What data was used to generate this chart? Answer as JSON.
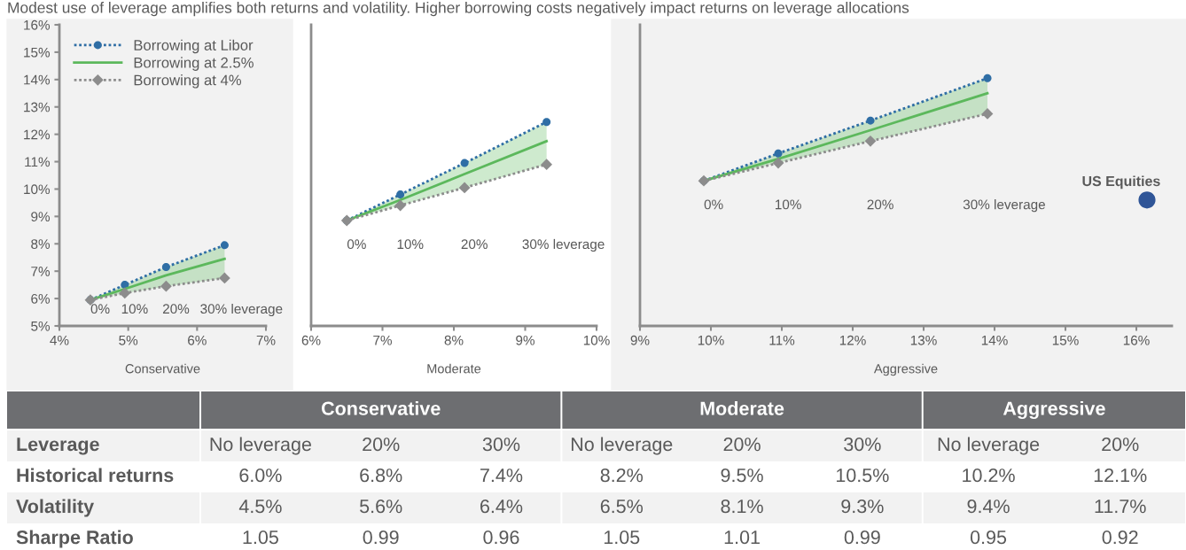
{
  "chart_data": [
    {
      "type": "line",
      "title": "Modest use of leverage amplifies both returns and volatility. Higher borrowing costs negatively impact returns on leverage allocations",
      "xlabel": "Conservative",
      "xlim": [
        4,
        7
      ],
      "ylim": [
        5,
        16
      ],
      "xticks": [
        {
          "value": 4,
          "label": "4%"
        },
        {
          "value": 5,
          "label": "5%"
        },
        {
          "value": 6,
          "label": "6%"
        },
        {
          "value": 7,
          "label": "7%"
        }
      ],
      "yticks": [
        {
          "value": 5,
          "label": "5%"
        },
        {
          "value": 6,
          "label": "6%"
        },
        {
          "value": 7,
          "label": "7%"
        },
        {
          "value": 8,
          "label": "8%"
        },
        {
          "value": 9,
          "label": "9%"
        },
        {
          "value": 10,
          "label": "10%"
        },
        {
          "value": 11,
          "label": "11%"
        },
        {
          "value": 12,
          "label": "12%"
        },
        {
          "value": 13,
          "label": "13%"
        },
        {
          "value": 14,
          "label": "14%"
        },
        {
          "value": 15,
          "label": "15%"
        },
        {
          "value": 16,
          "label": "16%"
        }
      ],
      "legend": "top left",
      "series": [
        {
          "name": "Borrowing at Libor",
          "color": "#2f6ea5",
          "marker": "circle",
          "line_style": "dotted",
          "x": [
            4.45,
            4.95,
            5.55,
            6.4
          ],
          "values": [
            5.95,
            6.5,
            7.15,
            7.95
          ]
        },
        {
          "name": "Borrowing at 2.5%",
          "color": "#5cb85c",
          "line_style": "solid",
          "x": [
            4.45,
            4.95,
            5.55,
            6.4
          ],
          "values": [
            5.95,
            6.35,
            6.85,
            7.45
          ],
          "lower": [
            5.95,
            6.2,
            6.45,
            6.75
          ],
          "upper": [
            5.95,
            6.5,
            7.15,
            7.95
          ]
        },
        {
          "name": "Borrowing at 4%",
          "color": "#8c8c8c",
          "marker": "diamond",
          "line_style": "dotted",
          "x": [
            4.45,
            4.95,
            5.55,
            6.4
          ],
          "values": [
            5.95,
            6.2,
            6.45,
            6.75
          ]
        }
      ],
      "annotations": [
        "0%",
        "10%",
        "20%",
        "30% leverage"
      ]
    },
    {
      "type": "line",
      "xlabel": "Moderate",
      "xlim": [
        6,
        10
      ],
      "ylim": [
        5,
        16
      ],
      "xticks": [
        {
          "value": 6,
          "label": "6%"
        },
        {
          "value": 7,
          "label": "7%"
        },
        {
          "value": 8,
          "label": "8%"
        },
        {
          "value": 9,
          "label": "9%"
        },
        {
          "value": 10,
          "label": "10%"
        }
      ],
      "tick_labels": "x",
      "series": [
        {
          "color": "#2f6ea5",
          "marker": "circle",
          "line_style": "dotted",
          "x": [
            6.5,
            7.25,
            8.15,
            9.3
          ],
          "values": [
            8.85,
            9.8,
            10.95,
            12.45
          ]
        },
        {
          "color": "#5cb85c",
          "line_style": "solid",
          "x": [
            6.5,
            7.25,
            8.15,
            9.3
          ],
          "values": [
            8.85,
            9.6,
            10.55,
            11.75
          ],
          "lower": [
            8.85,
            9.4,
            10.05,
            10.9
          ],
          "upper": [
            8.85,
            9.8,
            10.95,
            12.45
          ]
        },
        {
          "color": "#8c8c8c",
          "marker": "diamond",
          "line_style": "dotted",
          "x": [
            6.5,
            7.25,
            8.15,
            9.3
          ],
          "values": [
            8.85,
            9.4,
            10.05,
            10.9
          ]
        }
      ],
      "annotations": [
        "0%",
        "10%",
        "20%",
        "30% leverage"
      ]
    },
    {
      "type": "line",
      "xlabel": "Aggressive",
      "xlim": [
        9,
        16.5
      ],
      "ylim": [
        5,
        16
      ],
      "xticks": [
        {
          "value": 9,
          "label": "9%"
        },
        {
          "value": 10,
          "label": "10%"
        },
        {
          "value": 11,
          "label": "11%"
        },
        {
          "value": 12,
          "label": "12%"
        },
        {
          "value": 13,
          "label": "13%"
        },
        {
          "value": 14,
          "label": "14%"
        },
        {
          "value": 15,
          "label": "15%"
        },
        {
          "value": 16,
          "label": "16%"
        }
      ],
      "tick_labels": "x",
      "series": [
        {
          "color": "#2f6ea5",
          "marker": "circle",
          "line_style": "dotted",
          "x": [
            9.9,
            10.95,
            12.25,
            13.9
          ],
          "values": [
            10.3,
            11.3,
            12.5,
            14.05
          ]
        },
        {
          "color": "#5cb85c",
          "line_style": "solid",
          "x": [
            9.9,
            10.95,
            12.25,
            13.9
          ],
          "values": [
            10.3,
            11.1,
            12.15,
            13.5
          ],
          "lower": [
            10.3,
            10.95,
            11.75,
            12.75
          ],
          "upper": [
            10.3,
            11.3,
            12.5,
            14.05
          ]
        },
        {
          "color": "#8c8c8c",
          "marker": "diamond",
          "line_style": "dotted",
          "x": [
            9.9,
            10.95,
            12.25,
            13.9
          ],
          "values": [
            10.3,
            10.95,
            11.75,
            12.75
          ]
        },
        {
          "name": "US Equities",
          "type": "scatter",
          "color": "#2f5597",
          "marker": "circle",
          "x": [
            16.15
          ],
          "values": [
            9.6
          ]
        }
      ],
      "annotations": [
        "0%",
        "10%",
        "20%",
        "30% leverage"
      ]
    },
    {
      "type": "other",
      "categories": [
        "Conservative",
        "Moderate",
        "Aggressive"
      ],
      "y_categories": [
        "Leverage",
        "Historical returns",
        "Volatility",
        "Sharpe Ratio"
      ],
      "cell_labels": [
        [
          [
            "No leverage",
            "20%",
            "30%"
          ],
          [
            "No leverage",
            "20%",
            "30%"
          ],
          [
            "No leverage",
            "20%"
          ]
        ],
        [
          [
            "6.0%",
            "6.8%",
            "7.4%"
          ],
          [
            "8.2%",
            "9.5%",
            "10.5%"
          ],
          [
            "10.2%",
            "12.1%"
          ]
        ],
        [
          [
            "4.5%",
            "5.6%",
            "6.4%"
          ],
          [
            "6.5%",
            "8.1%",
            "9.3%"
          ],
          [
            "9.4%",
            "11.7%"
          ]
        ],
        [
          [
            "1.05",
            "0.99",
            "0.96"
          ],
          [
            "1.05",
            "1.01",
            "0.99"
          ],
          [
            "0.95",
            "0.92"
          ]
        ]
      ]
    }
  ]
}
